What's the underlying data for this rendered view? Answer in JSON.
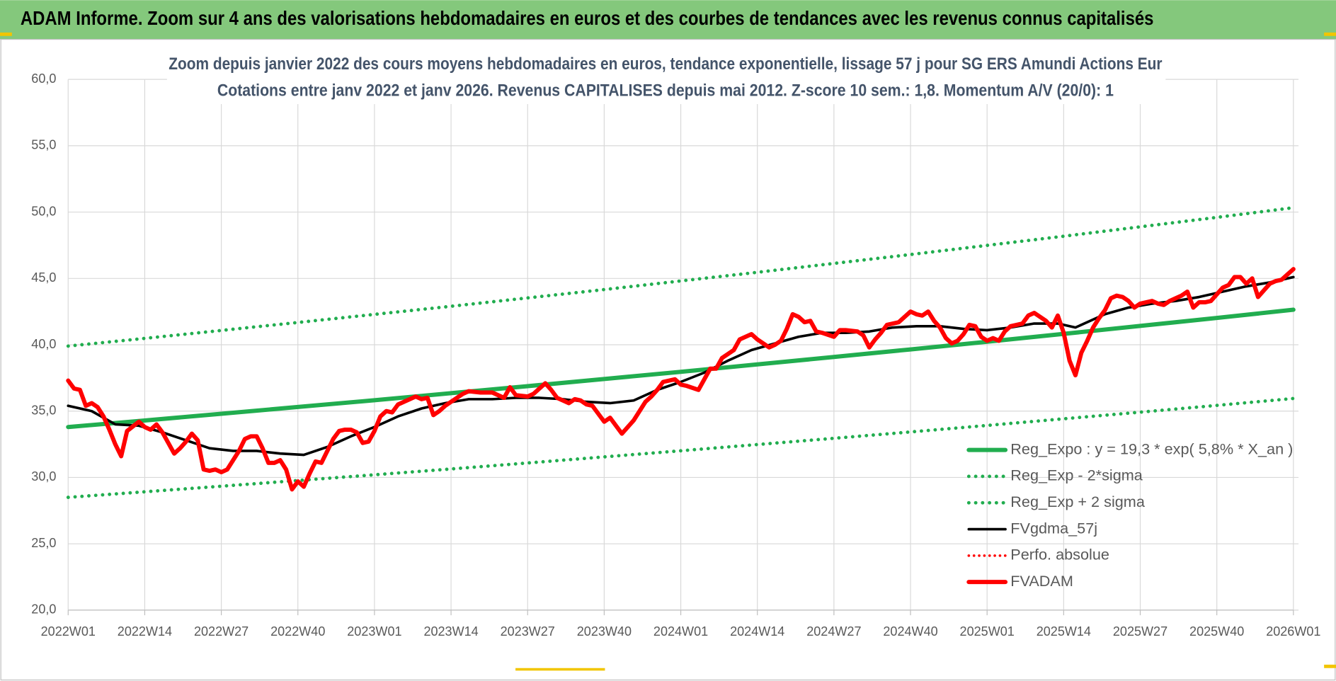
{
  "header": {
    "title": "ADAM Informe. Zoom sur 4 ans des valorisations hebdomadaires en euros et des courbes de tendances avec les revenus connus capitalisés"
  },
  "chart_data": {
    "type": "line",
    "title": "Zoom depuis janvier 2022 des cours moyens hebdomadaires en euros, tendance exponentielle, lissage 57 j pour SG ERS Amundi Actions Eur",
    "subtitle": "Cotations entre janv 2022 et janv 2026. Revenus CAPITALISES depuis mai 2012. Z-score 10 sem.: 1,8. Momentum A/V (20/0): 1",
    "xlim": [
      0,
      208
    ],
    "xticks": [
      {
        "value": 0,
        "label": "2022W01"
      },
      {
        "value": 13,
        "label": "2022W14"
      },
      {
        "value": 26,
        "label": "2022W27"
      },
      {
        "value": 39,
        "label": "2022W40"
      },
      {
        "value": 52,
        "label": "2023W01"
      },
      {
        "value": 65,
        "label": "2023W14"
      },
      {
        "value": 78,
        "label": "2023W27"
      },
      {
        "value": 91,
        "label": "2023W40"
      },
      {
        "value": 104,
        "label": "2024W01"
      },
      {
        "value": 117,
        "label": "2024W14"
      },
      {
        "value": 130,
        "label": "2024W27"
      },
      {
        "value": 143,
        "label": "2024W40"
      },
      {
        "value": 156,
        "label": "2025W01"
      },
      {
        "value": 169,
        "label": "2025W14"
      },
      {
        "value": 182,
        "label": "2025W27"
      },
      {
        "value": 195,
        "label": "2025W40"
      },
      {
        "value": 208,
        "label": "2026W01"
      }
    ],
    "ylim": [
      20,
      60
    ],
    "yticks": [
      {
        "value": 20,
        "label": "20,0"
      },
      {
        "value": 25,
        "label": "25,0"
      },
      {
        "value": 30,
        "label": "30,0"
      },
      {
        "value": 35,
        "label": "35,0"
      },
      {
        "value": 40,
        "label": "40,0"
      },
      {
        "value": 45,
        "label": "45,0"
      },
      {
        "value": 50,
        "label": "50,0"
      },
      {
        "value": 55,
        "label": "55,0"
      },
      {
        "value": 60,
        "label": "60,0"
      }
    ],
    "grid": true,
    "legend": "lower right",
    "series": [
      {
        "name": "Reg_Expo : y = 19,3 * exp( 5,8% *  X_an )",
        "color": "#21ad4f",
        "line_style": "solid",
        "weight": "thick",
        "x": [
          0,
          13,
          26,
          39,
          52,
          65,
          78,
          91,
          104,
          117,
          130,
          143,
          156,
          169,
          182,
          195,
          208
        ],
        "values": [
          33.8,
          34.29,
          34.8,
          35.31,
          35.82,
          36.35,
          36.88,
          37.42,
          37.96,
          38.52,
          39.08,
          39.65,
          40.23,
          40.82,
          41.42,
          42.02,
          42.64
        ]
      },
      {
        "name": "Reg_Exp - 2*sigma",
        "color": "#21ad4f",
        "line_style": "dotted",
        "weight": "thick",
        "x": [
          0,
          13,
          26,
          39,
          52,
          65,
          78,
          91,
          104,
          117,
          130,
          143,
          156,
          169,
          182,
          195,
          208
        ],
        "values": [
          28.5,
          28.92,
          29.34,
          29.77,
          30.2,
          30.64,
          31.09,
          31.55,
          32.01,
          32.48,
          32.95,
          33.43,
          33.92,
          34.42,
          34.92,
          35.43,
          35.95
        ]
      },
      {
        "name": "Reg_Exp + 2 sigma",
        "color": "#21ad4f",
        "line_style": "dotted",
        "weight": "thick",
        "x": [
          0,
          13,
          26,
          39,
          52,
          65,
          78,
          91,
          104,
          117,
          130,
          143,
          156,
          169,
          182,
          195,
          208
        ],
        "values": [
          39.9,
          40.48,
          41.08,
          41.68,
          42.29,
          42.9,
          43.53,
          44.16,
          44.81,
          45.46,
          46.13,
          46.8,
          47.49,
          48.18,
          48.89,
          49.6,
          50.33
        ]
      },
      {
        "name": "FVgdma_57j",
        "color": "#000000",
        "line_style": "solid",
        "weight": "thin",
        "x": [
          0,
          4,
          8,
          12,
          16,
          20,
          24,
          28,
          32,
          36,
          40,
          44,
          48,
          52,
          56,
          60,
          64,
          68,
          72,
          76,
          80,
          84,
          88,
          92,
          96,
          100,
          104,
          108,
          112,
          116,
          120,
          124,
          128,
          132,
          136,
          140,
          144,
          148,
          152,
          156,
          160,
          164,
          168,
          171,
          176,
          180,
          184,
          188,
          192,
          196,
          200,
          204,
          208
        ],
        "values": [
          35.4,
          35.0,
          34.0,
          33.9,
          33.4,
          32.8,
          32.2,
          32.0,
          32.0,
          31.8,
          31.7,
          32.3,
          33.1,
          33.8,
          34.6,
          35.2,
          35.6,
          35.9,
          35.9,
          36.0,
          36.0,
          35.9,
          35.7,
          35.6,
          35.8,
          36.6,
          37.2,
          37.9,
          38.8,
          39.6,
          40.1,
          40.6,
          40.9,
          40.9,
          41.0,
          41.3,
          41.4,
          41.4,
          41.2,
          41.1,
          41.3,
          41.6,
          41.6,
          41.3,
          42.3,
          42.8,
          43.1,
          43.3,
          43.6,
          44.0,
          44.4,
          44.7,
          45.1
        ]
      },
      {
        "name": "Perfo. absolue",
        "color": "#ff0000",
        "line_style": "dotted",
        "weight": "thin",
        "x": [],
        "values": []
      },
      {
        "name": "FVADAM",
        "color": "#ff0000",
        "line_style": "solid",
        "weight": "thick",
        "x": [
          0,
          1,
          2,
          3,
          4,
          5,
          6,
          7,
          8,
          9,
          10,
          12,
          13,
          14,
          15,
          16,
          17,
          18,
          19,
          20,
          21,
          22,
          23,
          24,
          25,
          26,
          27,
          28,
          29,
          30,
          31,
          32,
          33,
          34,
          35,
          36,
          37,
          38,
          39,
          40,
          41,
          42,
          43,
          44,
          45,
          46,
          47,
          48,
          49,
          50,
          51,
          52,
          53,
          54,
          55,
          56,
          57,
          59,
          60,
          61,
          62,
          63,
          64,
          66,
          67,
          68,
          70,
          72,
          74,
          75,
          76,
          78,
          79,
          81,
          82,
          83,
          85,
          86,
          87,
          88,
          89,
          90,
          91,
          92,
          93,
          94,
          95,
          96,
          97,
          98,
          99,
          100,
          101,
          103,
          104,
          105,
          107,
          108,
          109,
          110,
          111,
          112,
          113,
          114,
          116,
          117,
          118,
          119,
          120,
          121,
          122,
          123,
          124,
          125,
          126,
          127,
          128,
          130,
          131,
          132,
          134,
          135,
          136,
          137,
          138,
          139,
          140,
          141,
          142,
          143,
          144,
          145,
          146,
          147,
          148,
          149,
          150,
          151,
          152,
          153,
          154,
          155,
          156,
          157,
          158,
          159,
          160,
          161,
          162,
          163,
          164,
          165,
          166,
          167,
          168,
          169,
          170,
          171,
          172,
          173,
          174,
          175,
          176,
          177,
          178,
          179,
          180,
          181,
          182,
          183,
          184,
          185,
          186,
          187,
          188,
          189,
          190,
          191,
          192,
          193,
          194,
          195,
          196,
          197,
          198,
          199,
          200,
          201,
          202,
          203,
          204,
          205,
          206,
          207,
          208
        ],
        "values": [
          37.3,
          36.7,
          36.6,
          35.4,
          35.6,
          35.3,
          34.6,
          33.6,
          32.5,
          31.6,
          33.5,
          34.2,
          33.8,
          33.6,
          34.0,
          33.4,
          32.6,
          31.8,
          32.2,
          32.7,
          33.3,
          32.8,
          30.6,
          30.5,
          30.6,
          30.4,
          30.6,
          31.3,
          32.0,
          32.9,
          33.1,
          33.1,
          32.2,
          31.1,
          31.1,
          31.3,
          30.6,
          29.1,
          29.7,
          29.3,
          30.3,
          31.2,
          31.1,
          32.0,
          32.9,
          33.5,
          33.6,
          33.6,
          33.4,
          32.6,
          32.7,
          33.5,
          34.6,
          35.0,
          34.9,
          35.5,
          35.7,
          36.1,
          35.9,
          36.0,
          34.7,
          35.0,
          35.4,
          36.0,
          36.3,
          36.5,
          36.4,
          36.4,
          36.0,
          36.8,
          36.2,
          36.1,
          36.3,
          37.1,
          36.6,
          36.0,
          35.6,
          35.9,
          35.8,
          35.5,
          35.4,
          34.8,
          34.2,
          34.5,
          33.9,
          33.3,
          33.8,
          34.3,
          35.0,
          35.7,
          36.1,
          36.6,
          37.2,
          37.4,
          37.0,
          36.9,
          36.6,
          37.4,
          38.2,
          38.2,
          39.0,
          39.3,
          39.6,
          40.4,
          40.8,
          40.4,
          40.1,
          39.8,
          40.0,
          40.3,
          41.2,
          42.3,
          42.1,
          41.7,
          41.8,
          41.0,
          40.9,
          40.6,
          41.1,
          41.1,
          41.0,
          40.7,
          39.8,
          40.4,
          40.9,
          41.5,
          41.6,
          41.7,
          42.1,
          42.5,
          42.3,
          42.2,
          42.5,
          41.8,
          41.3,
          40.5,
          40.1,
          40.3,
          40.8,
          41.5,
          41.4,
          40.6,
          40.3,
          40.5,
          40.3,
          41.0,
          41.4,
          41.5,
          41.6,
          42.2,
          42.4,
          42.1,
          41.8,
          41.3,
          42.2,
          40.9,
          38.8,
          37.7,
          39.4,
          40.3,
          41.3,
          42.0,
          42.6,
          43.5,
          43.7,
          43.6,
          43.3,
          42.8,
          43.1,
          43.2,
          43.3,
          43.1,
          43.0,
          43.3,
          43.5,
          43.7,
          44.0,
          42.8,
          43.2,
          43.2,
          43.3,
          43.8,
          44.3,
          44.5,
          45.1,
          45.1,
          44.6,
          45.0,
          43.6,
          44.1,
          44.6,
          44.8,
          44.9,
          45.3,
          45.7
        ]
      }
    ]
  }
}
